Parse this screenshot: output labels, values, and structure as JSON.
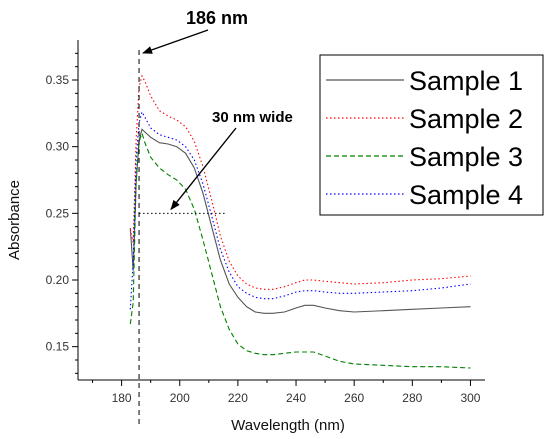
{
  "chart_data": {
    "type": "line",
    "xlabel": "Wavelength (nm)",
    "ylabel": "Absorbance",
    "xlim": [
      165,
      305
    ],
    "ylim": [
      0.125,
      0.38
    ],
    "xticks": [
      180,
      200,
      220,
      240,
      260,
      280,
      300
    ],
    "xtick_labels": [
      "180",
      "200",
      "220",
      "240",
      "260",
      "280",
      "300"
    ],
    "yticks": [
      0.15,
      0.2,
      0.25,
      0.3,
      0.35
    ],
    "ytick_labels": [
      "0.15",
      "0.20",
      "0.25",
      "0.30",
      "0.35"
    ],
    "grid": false,
    "legend_position": "top-right",
    "series": [
      {
        "name": "Sample 1",
        "color": "#555555",
        "dash": "solid",
        "points": [
          [
            183,
            0.239
          ],
          [
            184,
            0.207
          ],
          [
            185,
            0.272
          ],
          [
            186,
            0.305
          ],
          [
            187,
            0.313
          ],
          [
            188,
            0.311
          ],
          [
            190,
            0.307
          ],
          [
            193,
            0.303
          ],
          [
            196,
            0.302
          ],
          [
            199,
            0.3
          ],
          [
            202,
            0.295
          ],
          [
            205,
            0.284
          ],
          [
            208,
            0.265
          ],
          [
            211,
            0.24
          ],
          [
            214,
            0.215
          ],
          [
            217,
            0.197
          ],
          [
            220,
            0.187
          ],
          [
            223,
            0.18
          ],
          [
            226,
            0.176
          ],
          [
            229,
            0.175
          ],
          [
            232,
            0.175
          ],
          [
            236,
            0.176
          ],
          [
            240,
            0.179
          ],
          [
            243,
            0.181
          ],
          [
            246,
            0.181
          ],
          [
            250,
            0.179
          ],
          [
            255,
            0.177
          ],
          [
            260,
            0.176
          ],
          [
            270,
            0.177
          ],
          [
            280,
            0.178
          ],
          [
            290,
            0.179
          ],
          [
            300,
            0.18
          ]
        ]
      },
      {
        "name": "Sample 2",
        "color": "#ff0000",
        "dash": "dotted",
        "points": [
          [
            183,
            0.238
          ],
          [
            184,
            0.228
          ],
          [
            185,
            0.305
          ],
          [
            186,
            0.345
          ],
          [
            187,
            0.353
          ],
          [
            188,
            0.349
          ],
          [
            190,
            0.338
          ],
          [
            193,
            0.327
          ],
          [
            196,
            0.323
          ],
          [
            199,
            0.32
          ],
          [
            202,
            0.315
          ],
          [
            205,
            0.304
          ],
          [
            208,
            0.285
          ],
          [
            211,
            0.26
          ],
          [
            214,
            0.233
          ],
          [
            217,
            0.214
          ],
          [
            220,
            0.203
          ],
          [
            223,
            0.197
          ],
          [
            226,
            0.194
          ],
          [
            229,
            0.193
          ],
          [
            232,
            0.193
          ],
          [
            236,
            0.195
          ],
          [
            240,
            0.198
          ],
          [
            243,
            0.2
          ],
          [
            246,
            0.2
          ],
          [
            250,
            0.199
          ],
          [
            255,
            0.198
          ],
          [
            260,
            0.197
          ],
          [
            270,
            0.198
          ],
          [
            280,
            0.2
          ],
          [
            290,
            0.201
          ],
          [
            300,
            0.203
          ]
        ]
      },
      {
        "name": "Sample 3",
        "color": "#008000",
        "dash": "dashed",
        "points": [
          [
            183,
            0.167
          ],
          [
            184,
            0.183
          ],
          [
            185,
            0.275
          ],
          [
            186,
            0.304
          ],
          [
            187,
            0.31
          ],
          [
            188,
            0.303
          ],
          [
            190,
            0.292
          ],
          [
            193,
            0.284
          ],
          [
            196,
            0.279
          ],
          [
            199,
            0.275
          ],
          [
            202,
            0.268
          ],
          [
            205,
            0.253
          ],
          [
            208,
            0.23
          ],
          [
            211,
            0.205
          ],
          [
            214,
            0.18
          ],
          [
            217,
            0.163
          ],
          [
            220,
            0.152
          ],
          [
            223,
            0.147
          ],
          [
            226,
            0.145
          ],
          [
            229,
            0.144
          ],
          [
            232,
            0.144
          ],
          [
            236,
            0.145
          ],
          [
            240,
            0.146
          ],
          [
            243,
            0.146
          ],
          [
            246,
            0.146
          ],
          [
            250,
            0.143
          ],
          [
            255,
            0.139
          ],
          [
            260,
            0.137
          ],
          [
            270,
            0.136
          ],
          [
            280,
            0.135
          ],
          [
            290,
            0.135
          ],
          [
            300,
            0.134
          ]
        ]
      },
      {
        "name": "Sample 4",
        "color": "#0000ff",
        "dash": "dotted",
        "points": [
          [
            183,
            0.178
          ],
          [
            184,
            0.214
          ],
          [
            185,
            0.29
          ],
          [
            186,
            0.318
          ],
          [
            187,
            0.326
          ],
          [
            188,
            0.322
          ],
          [
            190,
            0.314
          ],
          [
            193,
            0.309
          ],
          [
            196,
            0.307
          ],
          [
            199,
            0.305
          ],
          [
            202,
            0.3
          ],
          [
            205,
            0.29
          ],
          [
            208,
            0.272
          ],
          [
            211,
            0.248
          ],
          [
            214,
            0.223
          ],
          [
            217,
            0.206
          ],
          [
            220,
            0.195
          ],
          [
            223,
            0.19
          ],
          [
            226,
            0.187
          ],
          [
            229,
            0.186
          ],
          [
            232,
            0.186
          ],
          [
            236,
            0.188
          ],
          [
            240,
            0.191
          ],
          [
            243,
            0.192
          ],
          [
            246,
            0.192
          ],
          [
            250,
            0.191
          ],
          [
            255,
            0.19
          ],
          [
            260,
            0.19
          ],
          [
            270,
            0.191
          ],
          [
            280,
            0.192
          ],
          [
            290,
            0.194
          ],
          [
            300,
            0.197
          ]
        ]
      }
    ],
    "annotations": {
      "peak_label": "186 nm",
      "peak_x": 186,
      "width_label": "30 nm wide",
      "width_y": 0.25,
      "width_x_range": [
        186,
        216
      ]
    }
  }
}
